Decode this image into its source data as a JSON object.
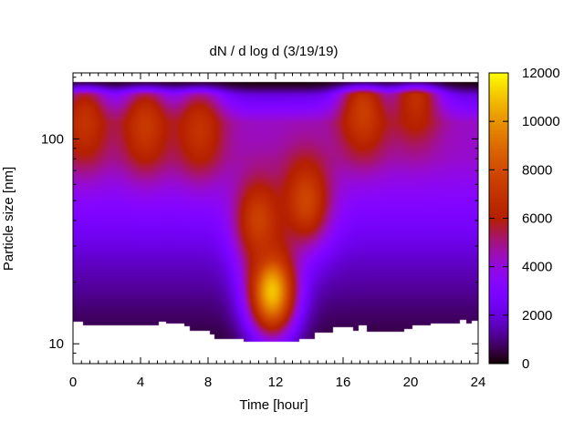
{
  "chart_data": {
    "type": "heatmap",
    "title": "dN / d log d (3/19/19)",
    "xlabel": "Time [hour]",
    "ylabel": "Particle size [nm]",
    "x_range": [
      0,
      24
    ],
    "x_ticks": [
      0,
      4,
      8,
      12,
      16,
      20,
      24
    ],
    "y_scale": "log",
    "y_range": [
      8,
      210
    ],
    "y_ticks": [
      10,
      100
    ],
    "colorbar": {
      "range": [
        0,
        12000
      ],
      "ticks": [
        0,
        2000,
        4000,
        6000,
        8000,
        10000,
        12000
      ],
      "palette": "gnuplot"
    },
    "grid": false,
    "data_y_range": [
      10,
      190
    ],
    "lower_size_limit": [
      {
        "t": 0,
        "d": 12.8
      },
      {
        "t": 0.6,
        "d": 12.3
      },
      {
        "t": 5.1,
        "d": 12.8
      },
      {
        "t": 5.5,
        "d": 12.5
      },
      {
        "t": 6.6,
        "d": 12.2
      },
      {
        "t": 6.9,
        "d": 11.6
      },
      {
        "t": 8.1,
        "d": 11.1
      },
      {
        "t": 8.4,
        "d": 10.5
      },
      {
        "t": 10.1,
        "d": 10.2
      },
      {
        "t": 13.4,
        "d": 10.6
      },
      {
        "t": 14.3,
        "d": 11.3
      },
      {
        "t": 15.4,
        "d": 12.1
      },
      {
        "t": 16.6,
        "d": 11.6
      },
      {
        "t": 16.9,
        "d": 12.3
      },
      {
        "t": 17.4,
        "d": 11.4
      },
      {
        "t": 19.6,
        "d": 11.8
      },
      {
        "t": 20.1,
        "d": 12.3
      },
      {
        "t": 21.2,
        "d": 12.6
      },
      {
        "t": 22.9,
        "d": 13.1
      },
      {
        "t": 23.3,
        "d": 12.6
      },
      {
        "t": 23.6,
        "d": 12.9
      },
      {
        "t": 24,
        "d": 12.9
      }
    ],
    "features": [
      {
        "t": 0.7,
        "d": 120,
        "value": 7000
      },
      {
        "t": 4.3,
        "d": 115,
        "value": 7300
      },
      {
        "t": 7.5,
        "d": 110,
        "value": 7000
      },
      {
        "t": 11.8,
        "d": 18,
        "value": 11000
      },
      {
        "t": 11.0,
        "d": 40,
        "value": 7600
      },
      {
        "t": 13.8,
        "d": 50,
        "value": 7800
      },
      {
        "t": 17.2,
        "d": 135,
        "value": 7500
      },
      {
        "t": 20.3,
        "d": 155,
        "value": 6800
      }
    ],
    "background_profile": [
      {
        "d": 190,
        "value": 500
      },
      {
        "d": 160,
        "value": 2200
      },
      {
        "d": 120,
        "value": 4300
      },
      {
        "d": 80,
        "value": 4200
      },
      {
        "d": 45,
        "value": 3000
      },
      {
        "d": 25,
        "value": 1700
      },
      {
        "d": 15,
        "value": 900
      },
      {
        "d": 11,
        "value": 500
      }
    ]
  }
}
